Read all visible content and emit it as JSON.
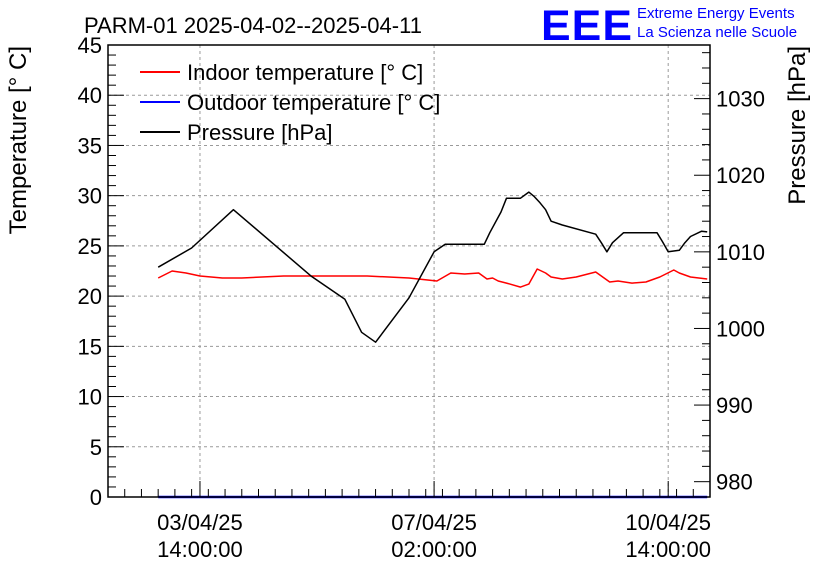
{
  "chart_data": {
    "type": "line",
    "title": "PARM-01 2025-04-02--2025-04-11",
    "ylabel": "Temperature [° C]",
    "y2label": "Pressure [hPa]",
    "xlabel": "",
    "ylim": [
      0,
      45
    ],
    "y2lim": [
      978,
      1037
    ],
    "xlim_hours": [
      -33,
      183
    ],
    "grid": true,
    "legend_position": "top-left",
    "x_ticks": [
      {
        "hours": 0,
        "date": "03/04/25",
        "time": "14:00:00"
      },
      {
        "hours": 84,
        "date": "07/04/25",
        "time": "02:00:00"
      },
      {
        "hours": 168,
        "date": "10/04/25",
        "time": "14:00:00"
      }
    ],
    "y_ticks": [
      0,
      5,
      10,
      15,
      20,
      25,
      30,
      35,
      40,
      45
    ],
    "y2_ticks": [
      980,
      990,
      1000,
      1010,
      1020,
      1030
    ],
    "series": [
      {
        "name": "Indoor temperature [° C]",
        "color": "#ff0000",
        "axis": "left",
        "x": [
          -15,
          -10,
          -5,
          0,
          8,
          15,
          30,
          45,
          60,
          75,
          85,
          90,
          95,
          100,
          103,
          105,
          107,
          110,
          115,
          118,
          121,
          124,
          126,
          130,
          135,
          142,
          147,
          150,
          155,
          160,
          165,
          170,
          172,
          176,
          182
        ],
        "y": [
          21.8,
          22.5,
          22.3,
          22.0,
          21.8,
          21.8,
          22.0,
          22.0,
          22.0,
          21.8,
          21.5,
          22.3,
          22.2,
          22.3,
          21.7,
          21.8,
          21.5,
          21.3,
          20.9,
          21.2,
          22.7,
          22.3,
          21.9,
          21.7,
          21.9,
          22.4,
          21.4,
          21.5,
          21.3,
          21.4,
          21.9,
          22.6,
          22.3,
          21.9,
          21.7
        ]
      },
      {
        "name": "Outdoor temperature [° C]",
        "color": "#0000ff",
        "axis": "left",
        "x": [
          -15,
          182
        ],
        "y": [
          0,
          0
        ]
      },
      {
        "name": "Pressure [hPa]",
        "color": "#000000",
        "axis": "right",
        "x": [
          -15,
          -3,
          12,
          40,
          52,
          58,
          63,
          75,
          84,
          88,
          102,
          104,
          108,
          110,
          115,
          118,
          120,
          122,
          124,
          126,
          130,
          142,
          144,
          146,
          148,
          152,
          156,
          158,
          160,
          164,
          166,
          168,
          172,
          174,
          176,
          180,
          182
        ],
        "y": [
          1008.0,
          1010.5,
          1015.5,
          1006.8,
          1003.8,
          999.5,
          998.2,
          1004.0,
          1010.0,
          1011.0,
          1011.0,
          1012.5,
          1015.2,
          1017.0,
          1017.0,
          1017.8,
          1017.2,
          1016.4,
          1015.5,
          1014.0,
          1013.5,
          1012.3,
          1011.2,
          1010.0,
          1011.2,
          1012.5,
          1012.5,
          1012.5,
          1012.5,
          1012.5,
          1011.3,
          1010.0,
          1010.2,
          1011.2,
          1012.0,
          1012.7,
          1012.6
        ]
      }
    ]
  },
  "logo": {
    "mark": "EEE",
    "line1": "Extreme Energy Events",
    "line2": "La Scienza nelle Scuole",
    "color": "#0000ff"
  }
}
